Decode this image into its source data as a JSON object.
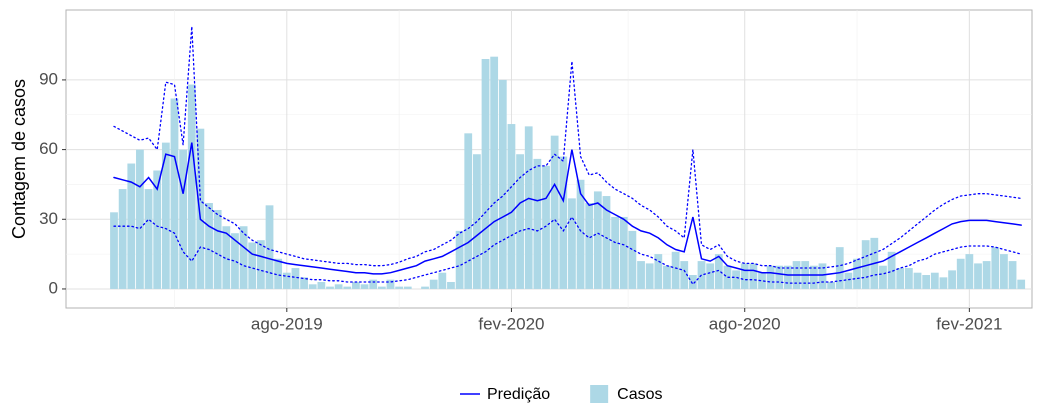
{
  "chart_data": {
    "type": "bar",
    "y_label": "Contagem de casos",
    "categories": [
      null,
      null,
      null,
      null,
      null,
      null,
      null,
      null,
      null,
      null,
      null,
      null,
      null,
      null,
      null,
      null,
      null,
      null,
      null,
      null,
      "ago-2019",
      null,
      null,
      null,
      null,
      null,
      null,
      null,
      null,
      null,
      null,
      null,
      null,
      null,
      null,
      null,
      null,
      null,
      null,
      null,
      null,
      null,
      null,
      null,
      null,
      null,
      "fev-2020",
      null,
      null,
      null,
      null,
      null,
      null,
      null,
      null,
      null,
      null,
      null,
      null,
      null,
      null,
      null,
      null,
      null,
      null,
      null,
      null,
      null,
      null,
      null,
      null,
      null,
      null,
      "ago-2020",
      null,
      null,
      null,
      null,
      null,
      null,
      null,
      null,
      null,
      null,
      null,
      null,
      null,
      null,
      null,
      null,
      null,
      null,
      null,
      null,
      null,
      null,
      null,
      null,
      null,
      "fev-2021",
      null,
      null,
      null,
      null,
      null,
      null
    ],
    "series": [
      {
        "name": "Casos",
        "type": "bar",
        "color": "#add8e6",
        "values": [
          33,
          43,
          54,
          60,
          43,
          51,
          63,
          82,
          60,
          88,
          69,
          37,
          34,
          27,
          24,
          27,
          20,
          21,
          36,
          13,
          7,
          9,
          5,
          2,
          3,
          1,
          2,
          1,
          3,
          2,
          4,
          1,
          4,
          1,
          1,
          0,
          1,
          4,
          7,
          3,
          25,
          67,
          58,
          99,
          100,
          90,
          71,
          58,
          70,
          56,
          53,
          66,
          57,
          39,
          47,
          37,
          42,
          40,
          31,
          31,
          25,
          12,
          11,
          15,
          10,
          16,
          12,
          6,
          12,
          11,
          15,
          10,
          8,
          11,
          11,
          7,
          10,
          10,
          10,
          12,
          12,
          10,
          11,
          3,
          18,
          7,
          13,
          21,
          22,
          10,
          16,
          9,
          9,
          7,
          6,
          7,
          5,
          8,
          13,
          15,
          11,
          12,
          18,
          15,
          12,
          4
        ]
      },
      {
        "name": "Predição",
        "type": "line",
        "color": "#0000ff",
        "values": [
          48,
          47,
          46,
          44,
          48,
          43,
          58,
          57,
          41,
          63,
          30,
          27,
          25,
          24,
          21,
          18,
          15,
          14,
          13,
          12,
          11,
          10.5,
          10,
          9.5,
          9,
          8.5,
          8,
          7.5,
          7,
          7,
          6.5,
          6.5,
          7,
          8,
          9,
          10,
          12,
          13,
          14,
          16,
          18,
          20,
          23,
          26,
          29,
          31,
          33,
          37,
          39,
          38,
          39,
          45,
          38,
          60,
          41,
          36,
          37,
          34,
          32,
          30,
          27,
          25,
          24,
          22,
          19,
          17,
          16,
          31,
          13,
          12,
          14,
          10,
          9,
          8,
          8,
          7,
          7,
          6.5,
          6,
          6,
          6,
          6,
          6,
          6.5,
          7,
          8,
          9,
          10,
          11,
          12,
          14,
          16,
          18,
          20,
          22,
          24,
          26,
          28,
          29,
          29.5,
          29.5,
          29.5,
          29,
          28.5,
          28,
          27.5
        ]
      },
      {
        "type": "line",
        "dash": "dotted",
        "color": "#0000ff",
        "values": [
          70,
          68,
          66,
          64,
          65,
          60,
          89,
          88,
          62,
          113,
          38,
          35,
          32,
          30,
          28,
          24,
          21,
          19,
          17,
          16,
          15,
          14,
          13,
          12.5,
          12,
          11.5,
          11,
          11,
          10.5,
          10.5,
          10,
          10,
          10.5,
          11.5,
          13,
          14,
          16,
          17,
          19,
          21,
          24,
          26,
          29,
          33,
          37,
          40,
          44,
          48,
          51,
          53,
          53,
          58,
          55,
          98,
          57,
          49,
          50,
          46,
          43,
          41,
          39,
          36,
          34,
          31,
          27,
          25,
          22,
          60,
          19,
          17,
          19,
          14,
          12,
          11,
          11,
          10,
          10,
          9,
          9,
          9,
          9,
          9,
          9,
          9.5,
          10,
          11,
          12.5,
          14,
          15.5,
          17,
          19.5,
          22,
          25,
          28,
          31,
          34,
          36.5,
          38.5,
          40,
          40.5,
          41,
          41,
          40.5,
          40,
          39.5,
          39
        ]
      },
      {
        "type": "line",
        "dash": "dotted",
        "color": "#0000ff",
        "values": [
          27,
          27,
          27,
          26,
          30,
          27,
          26,
          24,
          16,
          12,
          18,
          17,
          15,
          13,
          12,
          10,
          9,
          8,
          7,
          6,
          5.5,
          5,
          4.5,
          4,
          4,
          3.5,
          3.5,
          3,
          3,
          3,
          3,
          3,
          3,
          3.5,
          4,
          5,
          6,
          7,
          8,
          9,
          10,
          12,
          14,
          16,
          19,
          21,
          23,
          25,
          26,
          25,
          27,
          30,
          25,
          31,
          25,
          22,
          24,
          22,
          20,
          19,
          17,
          15,
          14,
          12,
          10,
          9,
          8,
          2,
          6,
          7,
          8,
          5,
          5,
          4,
          4,
          3.5,
          3,
          3,
          2.5,
          2.5,
          2.5,
          2.5,
          3,
          3,
          3.5,
          4,
          4.5,
          5,
          6,
          6.5,
          7.5,
          9,
          10,
          12,
          13,
          15,
          16,
          17,
          18,
          18.5,
          18.5,
          18.5,
          18,
          17,
          16,
          15
        ]
      }
    ],
    "ylim": [
      -8.2,
      120.1
    ],
    "yticks": [
      0,
      30,
      60,
      90
    ],
    "grid": true
  }
}
